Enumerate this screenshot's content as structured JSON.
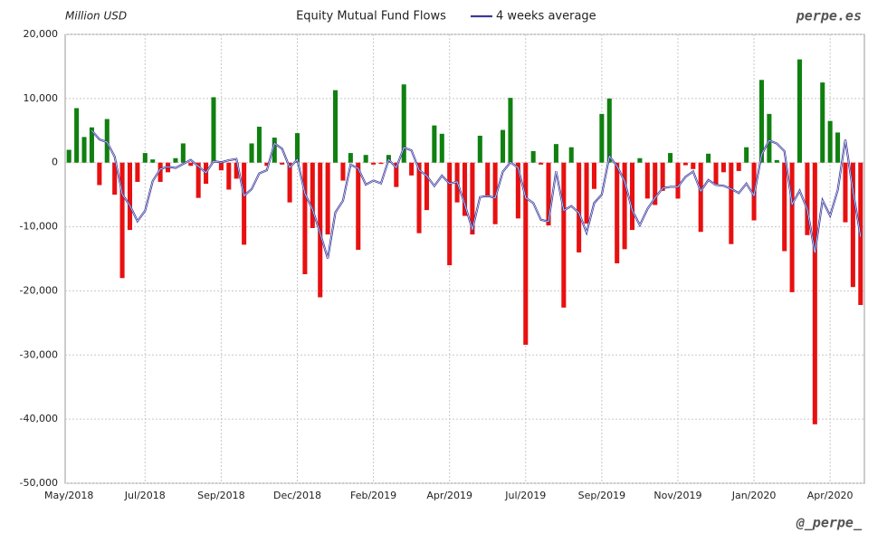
{
  "chart_data": {
    "type": "bar",
    "title": "Equity Mutual Fund Flows",
    "y_label": "Million USD",
    "annotations": [
      "perpe.es",
      "@_perpe_"
    ],
    "categories": [
      "May/2018",
      null,
      null,
      null,
      null,
      null,
      null,
      null,
      null,
      null,
      "Jul/2018",
      null,
      null,
      null,
      null,
      null,
      null,
      null,
      null,
      null,
      "Sep/2018",
      null,
      null,
      null,
      null,
      null,
      null,
      null,
      null,
      null,
      "Dec/2018",
      null,
      null,
      null,
      null,
      null,
      null,
      null,
      null,
      null,
      "Feb/2019",
      null,
      null,
      null,
      null,
      null,
      null,
      null,
      null,
      null,
      "Apr/2019",
      null,
      null,
      null,
      null,
      null,
      null,
      null,
      null,
      null,
      "Jul/2019",
      null,
      null,
      null,
      null,
      null,
      null,
      null,
      null,
      null,
      "Sep/2019",
      null,
      null,
      null,
      null,
      null,
      null,
      null,
      null,
      null,
      "Nov/2019",
      null,
      null,
      null,
      null,
      null,
      null,
      null,
      null,
      null,
      "Jan/2020",
      null,
      null,
      null,
      null,
      null,
      null,
      null,
      null,
      null,
      "Apr/2020",
      null,
      null,
      null,
      null
    ],
    "values": [
      2000,
      8500,
      4000,
      5500,
      -3500,
      6800,
      -5000,
      -18000,
      -10500,
      -3000,
      1500,
      500,
      -3000,
      -1500,
      700,
      3000,
      -500,
      -5500,
      -3300,
      10200,
      -1200,
      -4200,
      -2500,
      -12800,
      3000,
      5600,
      -500,
      3900,
      -300,
      -6200,
      4600,
      -17400,
      -10200,
      -21000,
      -11200,
      11300,
      -2800,
      1500,
      -13600,
      1200,
      -300,
      -200,
      1200,
      -3800,
      12200,
      -2000,
      -11000,
      -7400,
      5800,
      4500,
      -16000,
      -6200,
      -8300,
      -11200,
      4200,
      -5400,
      -9600,
      5100,
      10100,
      -8700,
      -28400,
      1800,
      -300,
      -9800,
      2900,
      -22600,
      2400,
      -14000,
      -9500,
      -4100,
      7600,
      10000,
      -15700,
      -13500,
      -10500,
      700,
      -5600,
      -6600,
      -4400,
      1500,
      -5600,
      -400,
      -1000,
      -10800,
      1400,
      -3500,
      -1500,
      -12700,
      -1300,
      2400,
      -9000,
      12900,
      7600,
      400,
      -13800,
      -20200,
      16100,
      -11300,
      -40800,
      12500,
      6500,
      4700,
      -9300,
      -19400,
      -22200
    ],
    "positive_color": "#108010",
    "negative_color": "#e81010",
    "series": [
      {
        "name": "4 weeks average",
        "color": "#3a3a9c",
        "values": [
          null,
          null,
          null,
          5000,
          3625,
          3200,
          950,
          -4925,
          -6675,
          -9125,
          -7500,
          -2875,
          -1000,
          -625,
          -825,
          -200,
          425,
          -575,
          -1575,
          225,
          50,
          375,
          575,
          -5175,
          -4125,
          -1675,
          -1175,
          3000,
          2175,
          -775,
          500,
          -4825,
          -7300,
          -11000,
          -14950,
          -7775,
          -5925,
          -300,
          -900,
          -3425,
          -2800,
          -3225,
          475,
          -775,
          2350,
          1900,
          -1150,
          -2050,
          -3650,
          -2025,
          -3275,
          -2975,
          -6500,
          -10425,
          -5375,
          -5175,
          -5500,
          -1425,
          50,
          -775,
          -5475,
          -6300,
          -8900,
          -9175,
          -1350,
          -7450,
          -6775,
          -7825,
          -10925,
          -6300,
          -5000,
          1000,
          -550,
          -2900,
          -7425,
          -9750,
          -7225,
          -5500,
          -3975,
          -3775,
          -3775,
          -2225,
          -1375,
          -4450,
          -2700,
          -3475,
          -3600,
          -4075,
          -4750,
          -3275,
          -5150,
          1250,
          3475,
          2975,
          1775,
          -6500,
          -4375,
          -7300,
          -14050,
          -5875,
          -8275,
          -4275,
          3600,
          -4375,
          -11550
        ]
      }
    ],
    "ylim": [
      -50000,
      20000
    ],
    "yticks": [
      {
        "value": -50000,
        "label": "-50,000"
      },
      {
        "value": -40000,
        "label": "-40,000"
      },
      {
        "value": -30000,
        "label": "-30,000"
      },
      {
        "value": -20000,
        "label": "-20,000"
      },
      {
        "value": -10000,
        "label": "-10,000"
      },
      0,
      {
        "value": 10000,
        "label": "10,000"
      },
      {
        "value": 20000,
        "label": "20,000"
      }
    ],
    "grid": true
  }
}
